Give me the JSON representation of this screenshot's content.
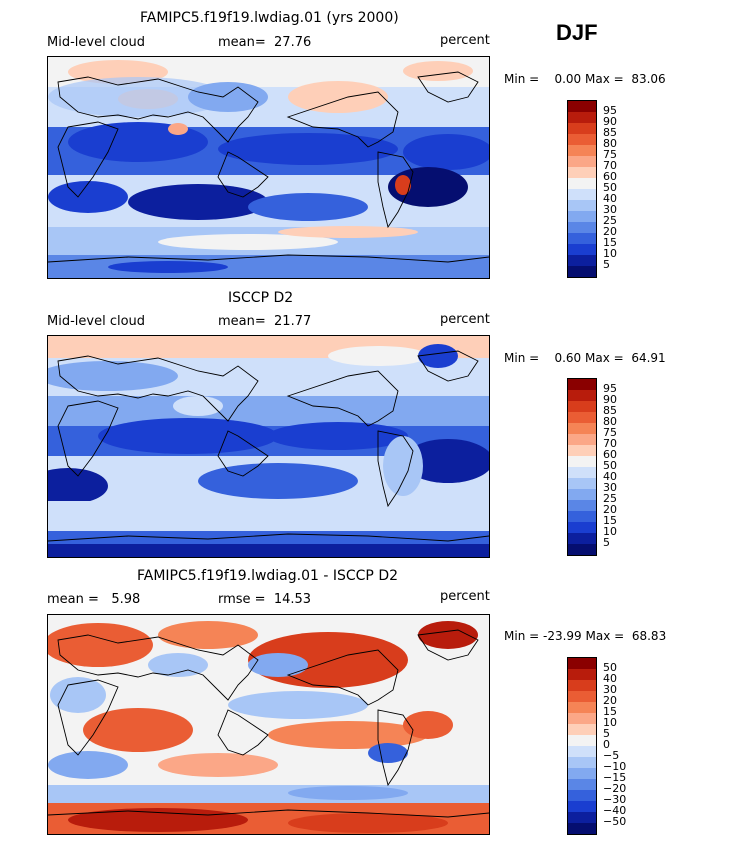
{
  "season": "DJF",
  "chart_data": [
    {
      "type": "heatmap",
      "title": "FAMIPC5.f19f19.lwdiag.01 (yrs 2000)",
      "variable": "Mid-level cloud",
      "mean_label": "mean=",
      "mean": "27.76",
      "units": "percent",
      "min_label": "Min =",
      "min": "0.00",
      "max_label": "Max =",
      "max": "83.06",
      "colorbar_labels": [
        "95",
        "90",
        "85",
        "80",
        "75",
        "70",
        "60",
        "50",
        "40",
        "30",
        "25",
        "20",
        "15",
        "10",
        "5"
      ],
      "colors": [
        "#8a0000",
        "#b81c0c",
        "#d83d1c",
        "#ea5d34",
        "#f58456",
        "#fba787",
        "#fecfb8",
        "#f3f3f3",
        "#cfe0fa",
        "#a8c6f6",
        "#82a9f0",
        "#5a86e6",
        "#3561dc",
        "#1a3ed0",
        "#0c1f9e",
        "#050e70"
      ]
    },
    {
      "type": "heatmap",
      "title": "ISCCP D2",
      "variable": "Mid-level cloud",
      "mean_label": "mean=",
      "mean": "21.77",
      "units": "percent",
      "min_label": "Min =",
      "min": "0.60",
      "max_label": "Max =",
      "max": "64.91",
      "colorbar_labels": [
        "95",
        "90",
        "85",
        "80",
        "75",
        "70",
        "60",
        "50",
        "40",
        "30",
        "25",
        "20",
        "15",
        "10",
        "5"
      ],
      "colors": [
        "#8a0000",
        "#b81c0c",
        "#d83d1c",
        "#ea5d34",
        "#f58456",
        "#fba787",
        "#fecfb8",
        "#f3f3f3",
        "#cfe0fa",
        "#a8c6f6",
        "#82a9f0",
        "#5a86e6",
        "#3561dc",
        "#1a3ed0",
        "#0c1f9e",
        "#050e70"
      ]
    },
    {
      "type": "heatmap",
      "title": "FAMIPC5.f19f19.lwdiag.01 - ISCCP D2",
      "mean_label": "mean =",
      "mean": "5.98",
      "rmse_label": "rmse =",
      "rmse": "14.53",
      "units": "percent",
      "min_label": "Min =",
      "min": "-23.99",
      "max_label": "Max =",
      "max": "68.83",
      "colorbar_labels": [
        "50",
        "40",
        "30",
        "20",
        "15",
        "10",
        "5",
        "0",
        "−5",
        "−10",
        "−15",
        "−20",
        "−30",
        "−40",
        "−50"
      ],
      "colors": [
        "#8a0000",
        "#b81c0c",
        "#d83d1c",
        "#ea5d34",
        "#f58456",
        "#fba787",
        "#fecfb8",
        "#f3f3f3",
        "#cfe0fa",
        "#a8c6f6",
        "#82a9f0",
        "#5a86e6",
        "#3561dc",
        "#1a3ed0",
        "#0c1f9e",
        "#050e70"
      ]
    }
  ]
}
